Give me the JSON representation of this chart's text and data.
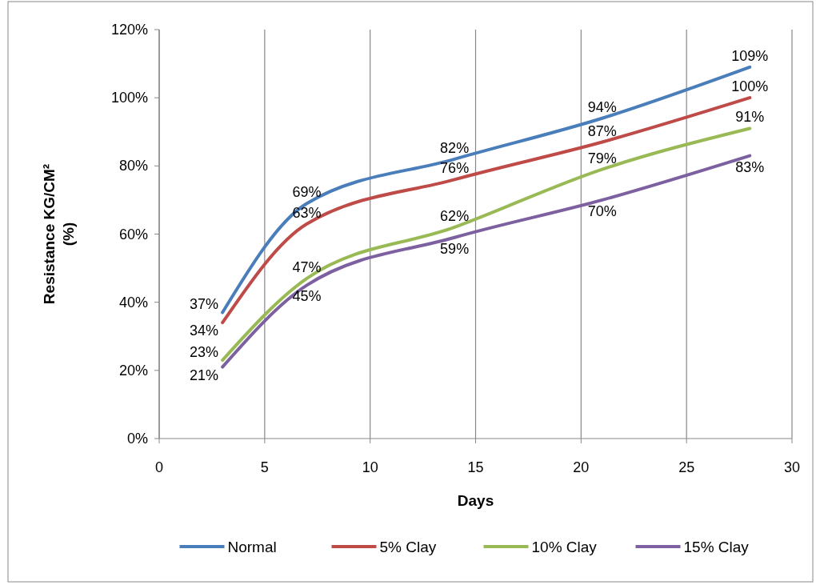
{
  "chart_data": {
    "type": "line",
    "xlabel": "Days",
    "ylabel": "Resistance KG/CM² (%)",
    "x": [
      3,
      7,
      14,
      21,
      28
    ],
    "xlim": [
      0,
      30
    ],
    "xticks": [
      0,
      5,
      10,
      15,
      20,
      25,
      30
    ],
    "ylim": [
      0,
      120
    ],
    "yticks": [
      {
        "value": 0,
        "label": "0%"
      },
      {
        "value": 20,
        "label": "20%"
      },
      {
        "value": 40,
        "label": "40%"
      },
      {
        "value": 60,
        "label": "60%"
      },
      {
        "value": 80,
        "label": "80%"
      },
      {
        "value": 100,
        "label": "100%"
      },
      {
        "value": 120,
        "label": "120%"
      }
    ],
    "grid": "x",
    "legend": "bottom",
    "marker": "none",
    "line_style": "solid",
    "series": [
      {
        "name": "Normal",
        "color": "#4a7ebb",
        "values": [
          37,
          69,
          82,
          94,
          109
        ],
        "value_labels": [
          "37%",
          "69%",
          "82%",
          "94%",
          "109%"
        ]
      },
      {
        "name": "5% Clay",
        "color": "#be4b48",
        "values": [
          34,
          63,
          76,
          87,
          100
        ],
        "value_labels": [
          "34%",
          "63%",
          "76%",
          "87%",
          "100%"
        ]
      },
      {
        "name": "10% Clay",
        "color": "#98b954",
        "values": [
          23,
          47,
          62,
          79,
          91
        ],
        "value_labels": [
          "23%",
          "47%",
          "62%",
          "79%",
          "91%"
        ]
      },
      {
        "name": "15% Clay",
        "color": "#7d60a0",
        "values": [
          21,
          45,
          59,
          70,
          83
        ],
        "value_labels": [
          "21%",
          "45%",
          "59%",
          "70%",
          "83%"
        ]
      }
    ]
  }
}
